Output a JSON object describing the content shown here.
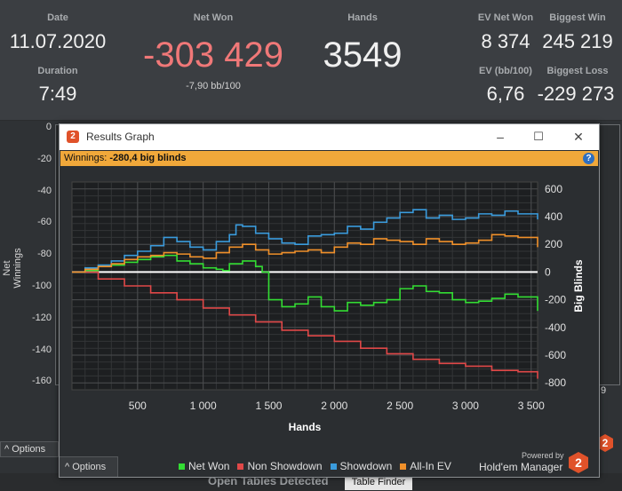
{
  "stats": {
    "date_label": "Date",
    "date_value": "11.07.2020",
    "duration_label": "Duration",
    "duration_value": "7:49",
    "net_won_label": "Net Won",
    "net_won_value": "-303 429",
    "net_won_sub": "-7,90 bb/100",
    "hands_label": "Hands",
    "hands_value": "3549",
    "ev_net_won_label": "EV Net Won",
    "ev_net_won_value": "8 374",
    "ev_bb_label": "EV (bb/100)",
    "ev_bb_value": "6,76",
    "biggest_win_label": "Biggest Win",
    "biggest_win_value": "245 219",
    "biggest_loss_label": "Biggest Loss",
    "biggest_loss_value": "-229 273",
    "net_won_color": "#f07878"
  },
  "background": {
    "y_axis_label": "Net Winnings",
    "y_ticks": [
      "0",
      "-20",
      "-40",
      "-60",
      "-80",
      "-100",
      "-120",
      "-140",
      "-160"
    ],
    "right_tick": "9",
    "options_label": "Options",
    "footer_text": "Open Tables Detected",
    "footer_button": "Table Finder"
  },
  "window": {
    "title": "Results Graph",
    "logo_text": "2",
    "minimize_icon": "–",
    "maximize_icon": "☐",
    "close_icon": "✕",
    "banner_prefix": "Winnings: ",
    "banner_value": "-280,4 big blinds",
    "help_icon": "?",
    "options_label": "Options",
    "powered_by": "Powered by",
    "brand": "Hold'em Manager",
    "brand_logo_text": "2"
  },
  "chart_data": {
    "type": "line",
    "xlabel": "Hands",
    "ylabel": "Big Blinds",
    "x_ticks": [
      500,
      1000,
      1500,
      2000,
      2500,
      3000,
      3500
    ],
    "x_tick_labels": [
      "500",
      "1 000",
      "1 500",
      "2 000",
      "2 500",
      "3 000",
      "3 500"
    ],
    "xlim": [
      0,
      3549
    ],
    "y_ticks": [
      600,
      400,
      200,
      0,
      -200,
      -400,
      -600,
      -800
    ],
    "ylim": [
      -850,
      650
    ],
    "grid": true,
    "legend_position": "bottom",
    "series": [
      {
        "name": "Net Won",
        "color": "#33dd33",
        "x": [
          0,
          100,
          200,
          300,
          400,
          500,
          600,
          700,
          800,
          900,
          1000,
          1100,
          1150,
          1200,
          1300,
          1400,
          1450,
          1500,
          1600,
          1700,
          1800,
          1900,
          2000,
          2100,
          2200,
          2300,
          2400,
          2500,
          2600,
          2700,
          2800,
          2900,
          3000,
          3100,
          3200,
          3300,
          3400,
          3549
        ],
        "y": [
          0,
          10,
          40,
          50,
          70,
          90,
          110,
          120,
          80,
          60,
          30,
          20,
          10,
          60,
          80,
          40,
          0,
          -200,
          -250,
          -230,
          -180,
          -250,
          -280,
          -220,
          -240,
          -220,
          -200,
          -120,
          -100,
          -140,
          -150,
          -200,
          -220,
          -210,
          -190,
          -160,
          -180,
          -280
        ]
      },
      {
        "name": "Non Showdown",
        "color": "#e04848",
        "x": [
          0,
          200,
          400,
          600,
          800,
          1000,
          1200,
          1400,
          1600,
          1800,
          2000,
          2200,
          2400,
          2600,
          2800,
          3000,
          3200,
          3400,
          3549
        ],
        "y": [
          0,
          -50,
          -100,
          -150,
          -200,
          -260,
          -310,
          -360,
          -420,
          -460,
          -500,
          -550,
          -590,
          -630,
          -660,
          -680,
          -710,
          -720,
          -770
        ]
      },
      {
        "name": "Showdown",
        "color": "#3a9bdc",
        "x": [
          0,
          100,
          200,
          300,
          400,
          500,
          600,
          700,
          800,
          900,
          1000,
          1100,
          1200,
          1250,
          1300,
          1400,
          1500,
          1600,
          1700,
          1800,
          1900,
          2000,
          2100,
          2200,
          2300,
          2400,
          2500,
          2600,
          2700,
          2800,
          2900,
          3000,
          3100,
          3200,
          3300,
          3400,
          3549
        ],
        "y": [
          0,
          30,
          50,
          80,
          120,
          150,
          190,
          250,
          220,
          180,
          160,
          220,
          270,
          340,
          330,
          280,
          240,
          210,
          200,
          260,
          270,
          280,
          330,
          310,
          360,
          390,
          430,
          450,
          390,
          410,
          380,
          390,
          420,
          410,
          440,
          420,
          380
        ]
      },
      {
        "name": "All-In EV",
        "color": "#f0902a",
        "x": [
          0,
          100,
          200,
          300,
          400,
          500,
          600,
          700,
          800,
          900,
          1000,
          1100,
          1200,
          1300,
          1400,
          1500,
          1600,
          1700,
          1800,
          1900,
          2000,
          2100,
          2200,
          2300,
          2400,
          2500,
          2600,
          2700,
          2800,
          2900,
          3000,
          3100,
          3200,
          3300,
          3400,
          3549
        ],
        "y": [
          0,
          20,
          40,
          60,
          90,
          110,
          120,
          140,
          130,
          110,
          100,
          140,
          180,
          200,
          160,
          130,
          140,
          150,
          160,
          140,
          180,
          210,
          200,
          240,
          230,
          220,
          200,
          240,
          220,
          200,
          210,
          230,
          270,
          260,
          250,
          180
        ]
      }
    ]
  }
}
